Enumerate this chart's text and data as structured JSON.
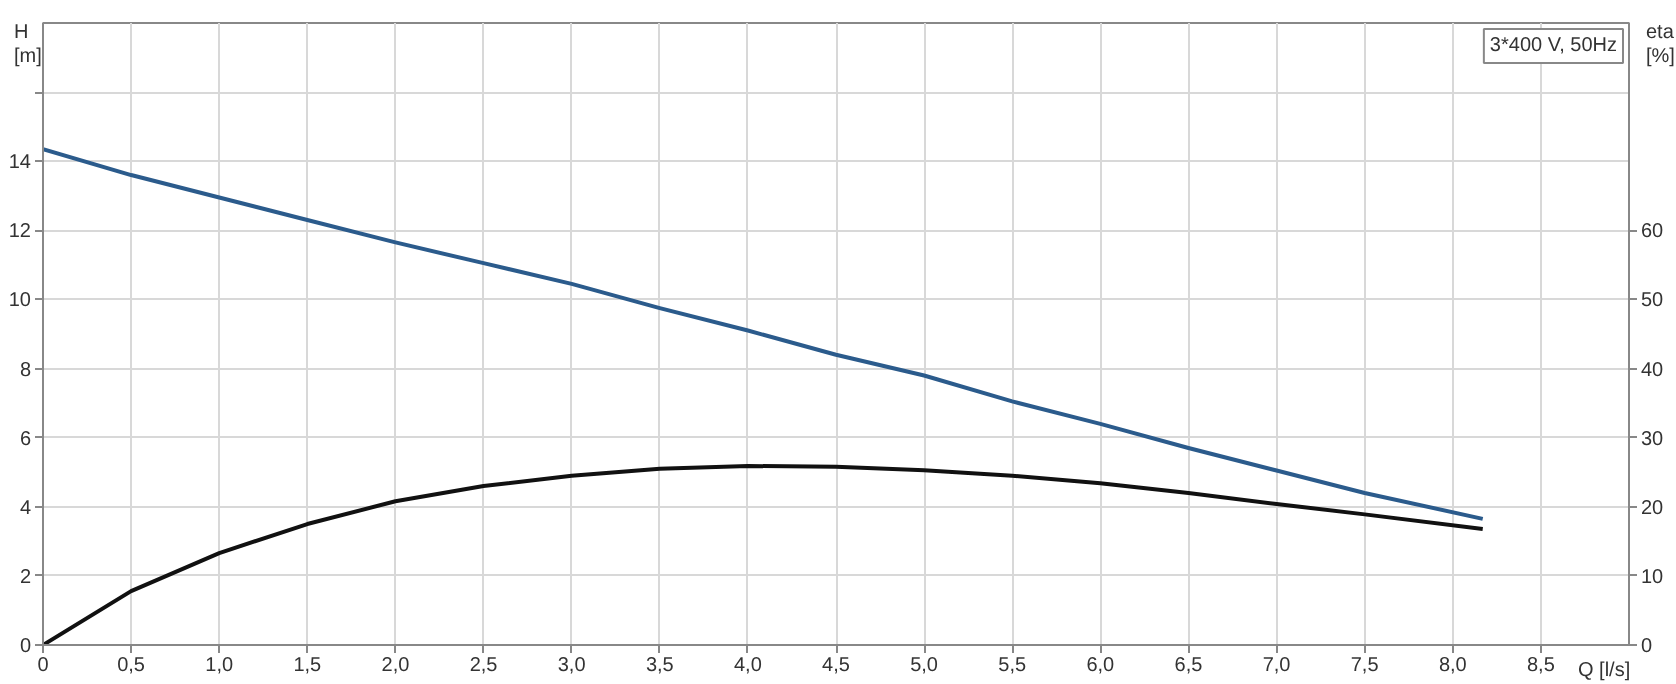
{
  "chart_data": {
    "type": "line",
    "xlabel": "Q [l/s]",
    "ylabel": "H\n[m]",
    "y2label": "eta\n[%]",
    "annotations": [
      "3*400 V, 50Hz"
    ],
    "xlim": [
      0,
      9
    ],
    "ylim": [
      0,
      18
    ],
    "y2lim": [
      0,
      90
    ],
    "xticks": [
      0,
      {
        "value": 0.5,
        "label": "0,5"
      },
      {
        "value": 1,
        "label": "1,0"
      },
      {
        "value": 1.5,
        "label": "1,5"
      },
      {
        "value": 2,
        "label": "2,0"
      },
      {
        "value": 2.5,
        "label": "2,5"
      },
      {
        "value": 3,
        "label": "3,0"
      },
      {
        "value": 3.5,
        "label": "3,5"
      },
      {
        "value": 4,
        "label": "4,0"
      },
      {
        "value": 4.5,
        "label": "4,5"
      },
      {
        "value": 5,
        "label": "5,0"
      },
      {
        "value": 5.5,
        "label": "5,5"
      },
      {
        "value": 6,
        "label": "6,0"
      },
      {
        "value": 6.5,
        "label": "6,5"
      },
      {
        "value": 7,
        "label": "7,0"
      },
      {
        "value": 7.5,
        "label": "7,5"
      },
      {
        "value": 8,
        "label": "8,0"
      },
      {
        "value": 8.5,
        "label": "8,5"
      }
    ],
    "yticks": [
      0,
      2,
      4,
      6,
      8,
      10,
      12,
      14,
      {
        "value": 16,
        "label": null
      }
    ],
    "y2ticks": [
      0,
      10,
      20,
      30,
      40,
      50,
      60
    ],
    "grid": true,
    "marker": "none",
    "line_style": "solid",
    "x": [
      0,
      0.5,
      1,
      1.5,
      2,
      2.5,
      3,
      3.5,
      4,
      4.5,
      5,
      5.5,
      6,
      6.5,
      7,
      7.5,
      8.17
    ],
    "series": [
      {
        "color": "#2b5b8c",
        "values": [
          14.35,
          13.6,
          12.95,
          12.3,
          11.65,
          11.05,
          10.45,
          9.75,
          9.1,
          8.4,
          7.8,
          7.05,
          6.4,
          5.7,
          5.05,
          4.4,
          3.65
        ]
      },
      {
        "color": "#111111",
        "axis": "y2",
        "values": [
          0,
          7.8,
          13.3,
          17.5,
          20.8,
          23,
          24.5,
          25.5,
          25.9,
          25.8,
          25.3,
          24.5,
          23.4,
          22,
          20.4,
          18.9,
          16.8
        ]
      }
    ]
  }
}
